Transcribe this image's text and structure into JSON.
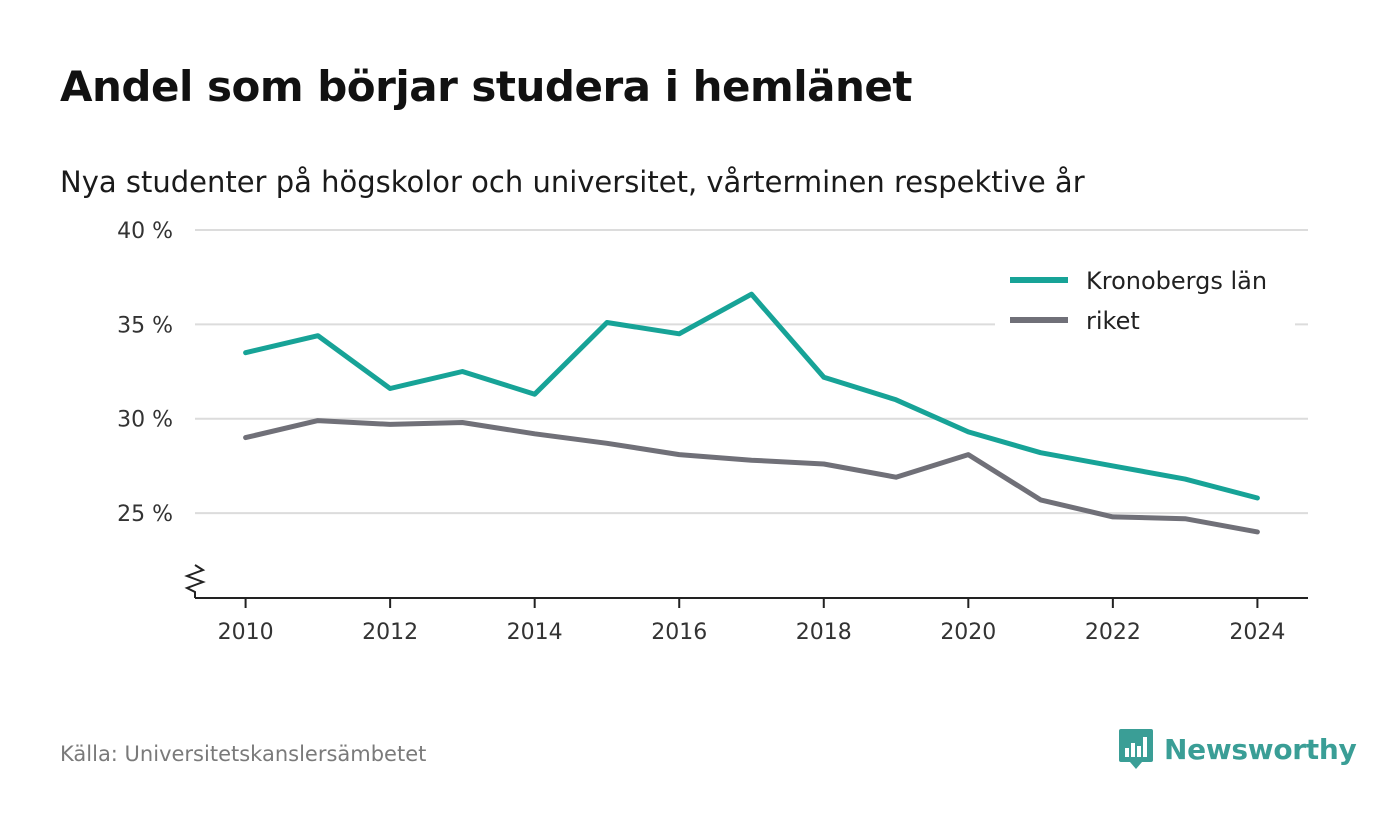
{
  "title": "Andel som börjar studera i hemlänet",
  "subtitle": "Nya studenter på högskolor och universitet, vårterminen respektive år",
  "source": "Källa: Universitetskanslersämbetet",
  "brand": {
    "name": "Newsworthy",
    "icon": "newsworthy-logo-icon",
    "color": "#3a9e96"
  },
  "chart_data": {
    "type": "line",
    "x": [
      2010,
      2011,
      2012,
      2013,
      2014,
      2015,
      2016,
      2017,
      2018,
      2019,
      2020,
      2021,
      2022,
      2023,
      2024
    ],
    "x_ticks": [
      "2010",
      "2012",
      "2014",
      "2016",
      "2018",
      "2020",
      "2022",
      "2024"
    ],
    "y_ticks": [
      "25 %",
      "30 %",
      "35 %",
      "40 %"
    ],
    "y_tick_values": [
      25,
      30,
      35,
      40
    ],
    "ylim": [
      20.5,
      40
    ],
    "xlim": [
      2009.3,
      2024.7
    ],
    "y_axis_break": true,
    "grid": true,
    "legend_position": "top-right",
    "series": [
      {
        "name": "Kronobergs län",
        "color": "#17a397",
        "values": [
          33.5,
          34.4,
          31.6,
          32.5,
          31.3,
          35.1,
          34.5,
          36.6,
          32.2,
          31.0,
          29.3,
          28.2,
          27.5,
          26.8,
          25.8
        ]
      },
      {
        "name": "riket",
        "color": "#707078",
        "values": [
          29.0,
          29.9,
          29.7,
          29.8,
          29.2,
          28.7,
          28.1,
          27.8,
          27.6,
          26.9,
          28.1,
          25.7,
          24.8,
          24.7,
          24.0
        ]
      }
    ]
  }
}
